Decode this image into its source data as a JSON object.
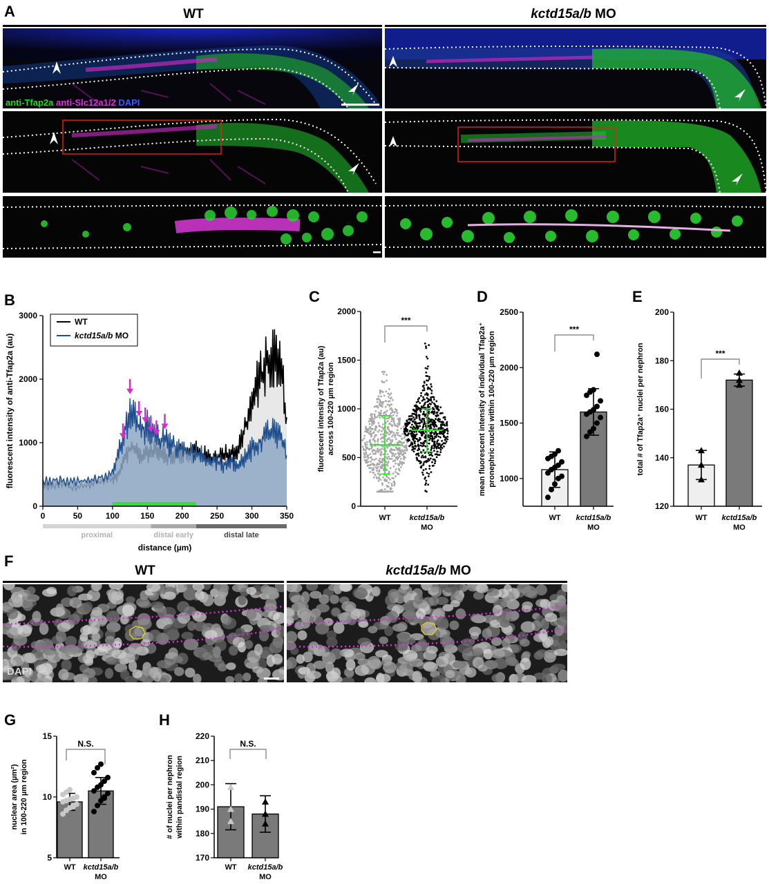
{
  "panelA": {
    "letter": "A",
    "wt_label": "WT",
    "mo_label_italic": "kctd15a/b",
    "mo_label_suffix": " MO",
    "stain_green": "anti-Tfap2a",
    "stain_magenta": "anti-Slc12a1/2",
    "stain_blue": "DAPI"
  },
  "panelB": {
    "letter": "B",
    "legend": [
      {
        "label": "WT",
        "color": "#000000"
      },
      {
        "label_italic": "kctd15a/b",
        "label_suffix": " MO",
        "color": "#1f4e8c"
      }
    ],
    "segments": [
      {
        "label": "proximal",
        "start": 0,
        "end": 155,
        "color": "#d4d4d4"
      },
      {
        "label": "distal early",
        "start": 155,
        "end": 220,
        "color": "#a8a8a8"
      },
      {
        "label": "distal late",
        "start": 220,
        "end": 350,
        "color": "#6a6a6a"
      }
    ],
    "green_bar": [
      100,
      220
    ]
  },
  "chart_data": [
    {
      "panel": "B",
      "type": "area",
      "xlabel": "distance (µm)",
      "ylabel": "fluorescent intensity of anti-Tfap2a (au)",
      "xlim": [
        0,
        350
      ],
      "ylim": [
        0,
        3000
      ],
      "xticks": [
        0,
        50,
        100,
        150,
        200,
        250,
        300,
        350
      ],
      "yticks": [
        0,
        1000,
        2000,
        3000
      ],
      "arrows_at_x": [
        115,
        125,
        138,
        147,
        155,
        163,
        175
      ],
      "series": [
        {
          "name": "WT",
          "x": [
            0,
            20,
            40,
            60,
            80,
            100,
            110,
            120,
            130,
            140,
            150,
            160,
            170,
            180,
            190,
            200,
            210,
            220,
            230,
            240,
            250,
            260,
            270,
            280,
            290,
            300,
            310,
            320,
            330,
            340,
            350
          ],
          "values": [
            300,
            350,
            300,
            320,
            380,
            420,
            500,
            850,
            900,
            800,
            850,
            900,
            850,
            800,
            820,
            850,
            800,
            900,
            800,
            750,
            780,
            800,
            850,
            900,
            1200,
            1600,
            2000,
            2200,
            2400,
            2300,
            1400
          ]
        },
        {
          "name": "kctd15a/b MO",
          "x": [
            0,
            20,
            40,
            60,
            80,
            100,
            110,
            120,
            130,
            140,
            150,
            160,
            170,
            180,
            190,
            200,
            210,
            220,
            230,
            240,
            250,
            260,
            270,
            280,
            290,
            300,
            310,
            320,
            330,
            340,
            350
          ],
          "values": [
            400,
            420,
            380,
            400,
            450,
            500,
            900,
            1300,
            1500,
            1200,
            1250,
            1100,
            1050,
            1000,
            950,
            900,
            850,
            850,
            800,
            700,
            700,
            650,
            700,
            650,
            750,
            900,
            1000,
            1100,
            1200,
            1100,
            800
          ]
        }
      ]
    },
    {
      "panel": "C",
      "type": "scatter",
      "ylabel_line1": "fluorescent intensity of Tfap2a (au)",
      "ylabel_line2": "across 100-220 µm region",
      "ylim": [
        0,
        2000
      ],
      "yticks": [
        0,
        500,
        1000,
        1500,
        2000
      ],
      "categories": [
        "WT",
        "kctd15a/b MO"
      ],
      "cat_line1": [
        "WT",
        "kctd15a/b"
      ],
      "cat_line2": [
        "",
        "MO"
      ],
      "mean": [
        630,
        780
      ],
      "sd": [
        300,
        220
      ],
      "significance": "***"
    },
    {
      "panel": "D",
      "type": "bar",
      "ylabel_line1": "mean fluorescent intensity of individual Tfap2a⁺",
      "ylabel_line2": "pronephric nuclei within 100-220 µm region",
      "ylim": [
        750,
        2500
      ],
      "yticks": [
        1000,
        1500,
        2000,
        2500
      ],
      "categories": [
        "WT",
        "kctd15a/b MO"
      ],
      "cat_line1": [
        "WT",
        "kctd15a/b"
      ],
      "cat_line2": [
        "",
        "MO"
      ],
      "values": [
        1080,
        1600
      ],
      "sd": [
        160,
        210
      ],
      "points": [
        [
          830,
          900,
          950,
          1000,
          1020,
          1050,
          1080,
          1100,
          1120,
          1150,
          1180,
          1200,
          1220,
          1250
        ],
        [
          1380,
          1420,
          1450,
          1500,
          1550,
          1580,
          1600,
          1620,
          1650,
          1700,
          1750,
          1780,
          1800,
          2120
        ]
      ],
      "significance": "***"
    },
    {
      "panel": "E",
      "type": "bar",
      "ylabel": "total # of Tfap2a⁺ nuclei per nephron",
      "ylim": [
        120,
        200
      ],
      "yticks": [
        120,
        140,
        160,
        180,
        200
      ],
      "categories": [
        "WT",
        "kctd15a/b MO"
      ],
      "cat_line1": [
        "WT",
        "kctd15a/b"
      ],
      "cat_line2": [
        "",
        "MO"
      ],
      "values": [
        137,
        172
      ],
      "sd": [
        6,
        2.5
      ],
      "points": [
        [
          131,
          137,
          143
        ],
        [
          170,
          172,
          175
        ]
      ],
      "significance": "***"
    },
    {
      "panel": "G",
      "type": "bar",
      "ylabel_line1": "nuclear area (µm²)",
      "ylabel_line2": "in 100-220 µm region",
      "ylim": [
        5,
        15
      ],
      "yticks": [
        5,
        10,
        15
      ],
      "categories": [
        "WT",
        "kctd15a/b MO"
      ],
      "cat_line1": [
        "WT",
        "kctd15a/b"
      ],
      "cat_line2": [
        "",
        "MO"
      ],
      "values": [
        9.6,
        10.5
      ],
      "sd": [
        0.7,
        1.1
      ],
      "points": [
        [
          8.6,
          8.9,
          9.1,
          9.3,
          9.4,
          9.6,
          9.7,
          9.8,
          9.9,
          10.0,
          10.2,
          10.4,
          10.6,
          9.2
        ],
        [
          8.8,
          9.3,
          9.7,
          10.0,
          10.3,
          10.5,
          10.8,
          11.0,
          11.3,
          11.6,
          12.0,
          12.4,
          12.7,
          9.9
        ]
      ],
      "significance": "N.S."
    },
    {
      "panel": "H",
      "type": "bar",
      "ylabel_line1": "# of nuclei per nephron",
      "ylabel_line2": "within pandistal region",
      "ylim": [
        170,
        220
      ],
      "yticks": [
        170,
        180,
        190,
        200,
        210,
        220
      ],
      "categories": [
        "WT",
        "kctd15a/b MO"
      ],
      "cat_line1": [
        "WT",
        "kctd15a/b"
      ],
      "cat_line2": [
        "",
        "MO"
      ],
      "values": [
        191,
        188
      ],
      "sd": [
        9.5,
        7.5
      ],
      "points": [
        [
          185,
          190,
          199
        ],
        [
          184,
          188,
          193
        ]
      ],
      "significance": "N.S."
    }
  ],
  "panelF": {
    "letter": "F",
    "wt_label": "WT",
    "mo_label_italic": "kctd15a/b",
    "mo_label_suffix": " MO",
    "stain": "DAPI"
  },
  "letters": {
    "C": "C",
    "D": "D",
    "E": "E",
    "G": "G",
    "H": "H"
  }
}
